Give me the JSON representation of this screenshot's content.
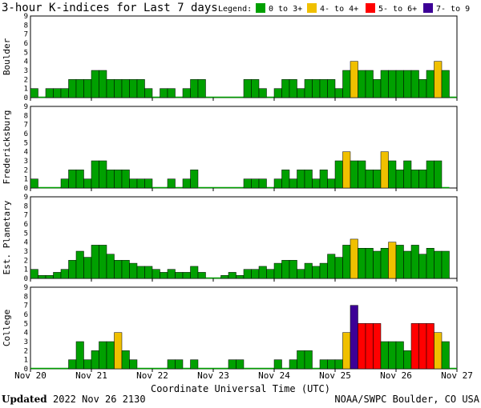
{
  "title": "3-hour K-indices for Last 7 days",
  "legend": {
    "label": "Legend:",
    "items": [
      {
        "text": "0 to 3+",
        "color": "#00a000"
      },
      {
        "text": "4- to 4+",
        "color": "#f0c000"
      },
      {
        "text": "5- to 6+",
        "color": "#ff0000"
      },
      {
        "text": "7- to 9",
        "color": "#3c0096"
      }
    ]
  },
  "footer": {
    "updated_label": "Updated",
    "updated_value": "2022 Nov 26 2130",
    "source": "NOAA/SWPC Boulder, CO USA"
  },
  "chart_data": {
    "type": "bar",
    "title": "3-hour K-indices for Last 7 days",
    "xlabel": "Coordinate Universal Time (UTC)",
    "x_ticks": [
      "Nov 20",
      "Nov 21",
      "Nov 22",
      "Nov 23",
      "Nov 24",
      "Nov 25",
      "Nov 26",
      "Nov 27"
    ],
    "y_ticks": [
      "0",
      "1",
      "2",
      "3",
      "4",
      "5",
      "6",
      "7",
      "8",
      "9"
    ],
    "ylim": [
      0,
      9
    ],
    "interval_hours": 3,
    "series": [
      {
        "name": "Boulder",
        "values": [
          1,
          0,
          1,
          1,
          1,
          2,
          2,
          2,
          3,
          3,
          2,
          2,
          2,
          2,
          2,
          1,
          0,
          1,
          1,
          0,
          1,
          2,
          2,
          0,
          0,
          0,
          0,
          0,
          2,
          2,
          1,
          0,
          1,
          2,
          2,
          1,
          2,
          2,
          2,
          2,
          1,
          3,
          4,
          3,
          3,
          2,
          3,
          3,
          3,
          3,
          3,
          2,
          3,
          4,
          3,
          0
        ]
      },
      {
        "name": "Fredericksburg",
        "values": [
          1,
          0,
          0,
          0,
          1,
          2,
          2,
          1,
          3,
          3,
          2,
          2,
          2,
          1,
          1,
          1,
          0,
          0,
          1,
          0,
          1,
          2,
          0,
          0,
          0,
          0,
          0,
          0,
          1,
          1,
          1,
          0,
          1,
          2,
          1,
          2,
          2,
          1,
          2,
          1,
          3,
          4,
          3,
          3,
          2,
          2,
          4,
          3,
          2,
          3,
          2,
          2,
          3,
          3,
          0
        ]
      },
      {
        "name": "Est. Planetary",
        "values": [
          1,
          0.33,
          0.33,
          0.67,
          1,
          2,
          3,
          2.33,
          3.67,
          3.67,
          2.67,
          2,
          2,
          1.67,
          1.33,
          1.33,
          1,
          0.67,
          1,
          0.67,
          0.67,
          1.33,
          0.67,
          0,
          0,
          0.33,
          0.67,
          0.33,
          1,
          1,
          1.33,
          1,
          1.67,
          2,
          2,
          1,
          1.67,
          1.33,
          1.67,
          2.67,
          2.33,
          3.67,
          4.33,
          3.33,
          3.33,
          3,
          3.33,
          4,
          3.67,
          3,
          3.67,
          2.67,
          3.33,
          3,
          3
        ]
      },
      {
        "name": "College",
        "values": [
          0,
          0,
          0,
          0,
          0,
          1,
          3,
          1,
          2,
          3,
          3,
          4,
          2,
          1,
          0,
          0,
          0,
          0,
          1,
          1,
          0,
          1,
          0,
          0,
          0,
          0,
          1,
          1,
          0,
          0,
          0,
          0,
          1,
          0,
          1,
          2,
          2,
          0,
          1,
          1,
          1,
          4,
          7,
          5,
          5,
          5,
          3,
          3,
          3,
          2,
          5,
          5,
          5,
          4,
          3,
          0
        ]
      }
    ]
  }
}
